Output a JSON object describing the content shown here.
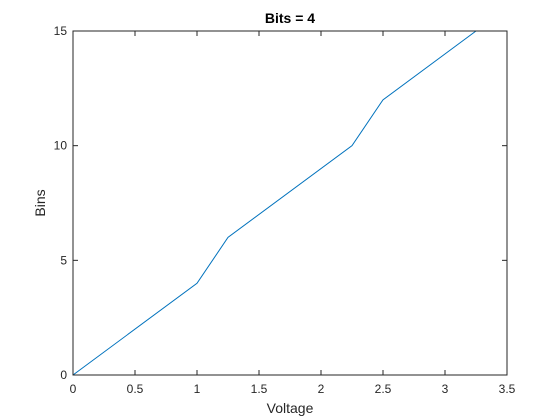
{
  "chart_data": {
    "type": "line",
    "title": "Bits = 4",
    "xlabel": "Voltage",
    "ylabel": "Bins",
    "xlim": [
      0,
      3.5
    ],
    "ylim": [
      0,
      15
    ],
    "xticks": [
      0,
      0.5,
      1,
      1.5,
      2,
      2.5,
      3,
      3.5
    ],
    "xtick_labels": [
      "0",
      "0.5",
      "1",
      "1.5",
      "2",
      "2.5",
      "3",
      "3.5"
    ],
    "yticks": [
      0,
      5,
      10,
      15
    ],
    "ytick_labels": [
      "0",
      "5",
      "10",
      "15"
    ],
    "grid": false,
    "series": [
      {
        "color": "#0072BD",
        "x": [
          0,
          1,
          1.25,
          2.25,
          2.5,
          3.25
        ],
        "y": [
          0,
          4,
          6,
          10,
          12,
          15
        ]
      }
    ]
  }
}
